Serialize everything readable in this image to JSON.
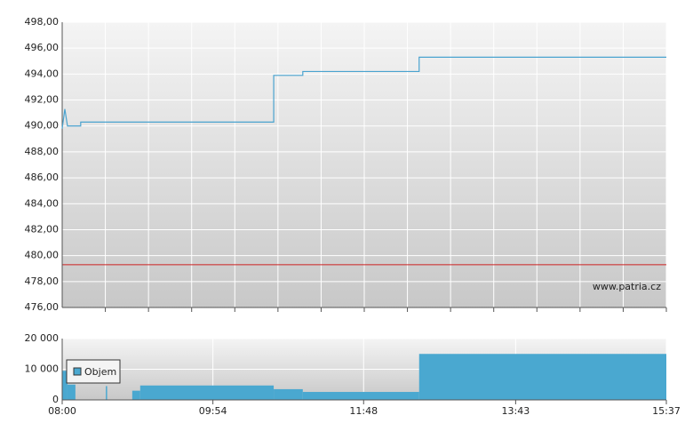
{
  "chart_data": [
    {
      "type": "line",
      "watermark": "www.patria.cz",
      "x": [
        "08:00",
        "08:02",
        "08:04",
        "08:14",
        "08:14",
        "10:40",
        "10:40",
        "11:02",
        "11:02",
        "12:30",
        "12:30",
        "15:37"
      ],
      "series": [
        {
          "color": "#4aa3cf",
          "values": [
            489.8,
            491.3,
            490.0,
            490.0,
            490.3,
            490.3,
            493.9,
            493.9,
            494.2,
            494.2,
            495.3,
            495.3
          ]
        }
      ],
      "reference_line": 479.3,
      "reference_color": "#cc2222",
      "xlim": [
        "08:00",
        "15:37"
      ],
      "ylim": [
        476,
        498
      ],
      "yticks": [
        {
          "value": 476,
          "label": "476,00"
        },
        {
          "value": 478,
          "label": "478,00"
        },
        {
          "value": 480,
          "label": "480,00"
        },
        {
          "value": 482,
          "label": "482,00"
        },
        {
          "value": 484,
          "label": "484,00"
        },
        {
          "value": 486,
          "label": "486,00"
        },
        {
          "value": 488,
          "label": "488,00"
        },
        {
          "value": 490,
          "label": "490,00"
        },
        {
          "value": 492,
          "label": "492,00"
        },
        {
          "value": 494,
          "label": "494,00"
        },
        {
          "value": 496,
          "label": "496,00"
        },
        {
          "value": 498,
          "label": "498,00"
        }
      ],
      "grid": true
    },
    {
      "type": "histogram",
      "legend": "Objem",
      "legend_position": "upper left",
      "color": "#4aa8d0",
      "bins": [
        "08:00",
        "08:04",
        "08:10",
        "08:33",
        "08:34",
        "08:53",
        "08:59",
        "10:40",
        "11:02",
        "12:30",
        "15:37"
      ],
      "values": [
        9500,
        5000,
        0,
        4500,
        0,
        3000,
        4700,
        3500,
        2600,
        15000
      ],
      "xlim": [
        "08:00",
        "15:37"
      ],
      "xticks": [
        "08:00",
        "09:54",
        "11:48",
        "13:43",
        "15:37"
      ],
      "ylim": [
        0,
        20000
      ],
      "yticks": [
        {
          "value": 0,
          "label": "0"
        },
        {
          "value": 10000,
          "label": "10 000"
        },
        {
          "value": 20000,
          "label": "20 000"
        }
      ],
      "grid": true
    }
  ]
}
